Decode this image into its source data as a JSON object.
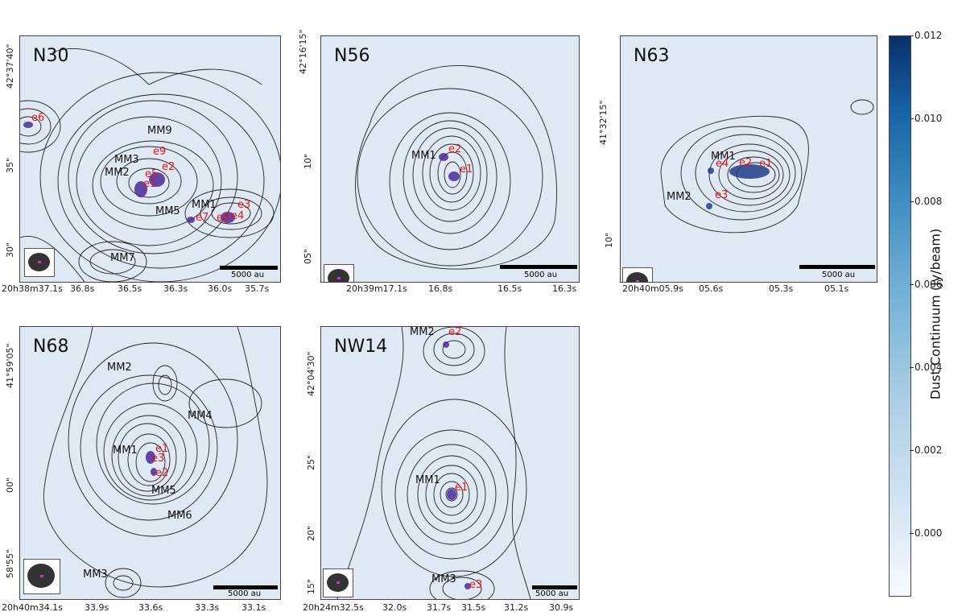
{
  "panels": [
    {
      "name": "N30",
      "sources": [
        "MM9",
        "MM3",
        "MM2",
        "MM5",
        "MM1",
        "MM7"
      ],
      "cores": [
        "e6",
        "e9",
        "e5",
        "e2",
        "e1",
        "e3",
        "e7",
        "e8",
        "e4"
      ],
      "ra_ticks": [
        "20h38m37.1s",
        "36.8s",
        "36.5s",
        "36.3s",
        "36.0s",
        "35.7s"
      ],
      "dec_ticks": [
        "42°37'40\"",
        "35\"",
        "30\""
      ],
      "scalebar": "5000 au"
    },
    {
      "name": "N56",
      "sources": [
        "MM1"
      ],
      "cores": [
        "e2",
        "e1"
      ],
      "ra_ticks": [
        "20h39m17.1s",
        "16.8s",
        "16.5s",
        "16.3s"
      ],
      "dec_ticks": [
        "42°16'15\"",
        "10\"",
        "05\""
      ],
      "scalebar": "5000 au"
    },
    {
      "name": "N63",
      "sources": [
        "MM1",
        "MM2"
      ],
      "cores": [
        "e4",
        "e2",
        "e1",
        "e3"
      ],
      "ra_ticks": [
        "20h40m05.9s",
        "05.6s",
        "05.3s",
        "05.1s"
      ],
      "dec_ticks": [
        "41°32'15\"",
        "10\""
      ],
      "scalebar": "5000 au"
    },
    {
      "name": "N68",
      "sources": [
        "MM2",
        "MM4",
        "MM1",
        "MM5",
        "MM6",
        "MM3"
      ],
      "cores": [
        "e1",
        "e3",
        "e2"
      ],
      "ra_ticks": [
        "20h40m34.1s",
        "33.9s",
        "33.6s",
        "33.3s",
        "33.1s"
      ],
      "dec_ticks": [
        "41°59'05\"",
        "00\"",
        "58'55\""
      ],
      "scalebar": "5000 au"
    },
    {
      "name": "NW14",
      "sources": [
        "MM2",
        "MM1",
        "MM3"
      ],
      "cores": [
        "e2",
        "e1",
        "e3"
      ],
      "ra_ticks": [
        "20h24m32.5s",
        "32.0s",
        "31.7s",
        "31.5s",
        "31.2s",
        "30.9s"
      ],
      "dec_ticks": [
        "42°04'30\"",
        "25\"",
        "20\"",
        "15\""
      ],
      "scalebar": "5000 au"
    }
  ],
  "colorbar": {
    "label": "Dust Continuum (Jy/beam)",
    "ticks": [
      "0.012",
      "0.010",
      "0.008",
      "0.006",
      "0.004",
      "0.002",
      "0.000"
    ],
    "range": [
      -0.0015,
      0.012
    ],
    "colors": {
      "low": "#f7fbff",
      "high": "#08306b"
    }
  },
  "colors": {
    "source_label": "#111111",
    "core_label": "#e8141b",
    "contour": "#222222"
  }
}
